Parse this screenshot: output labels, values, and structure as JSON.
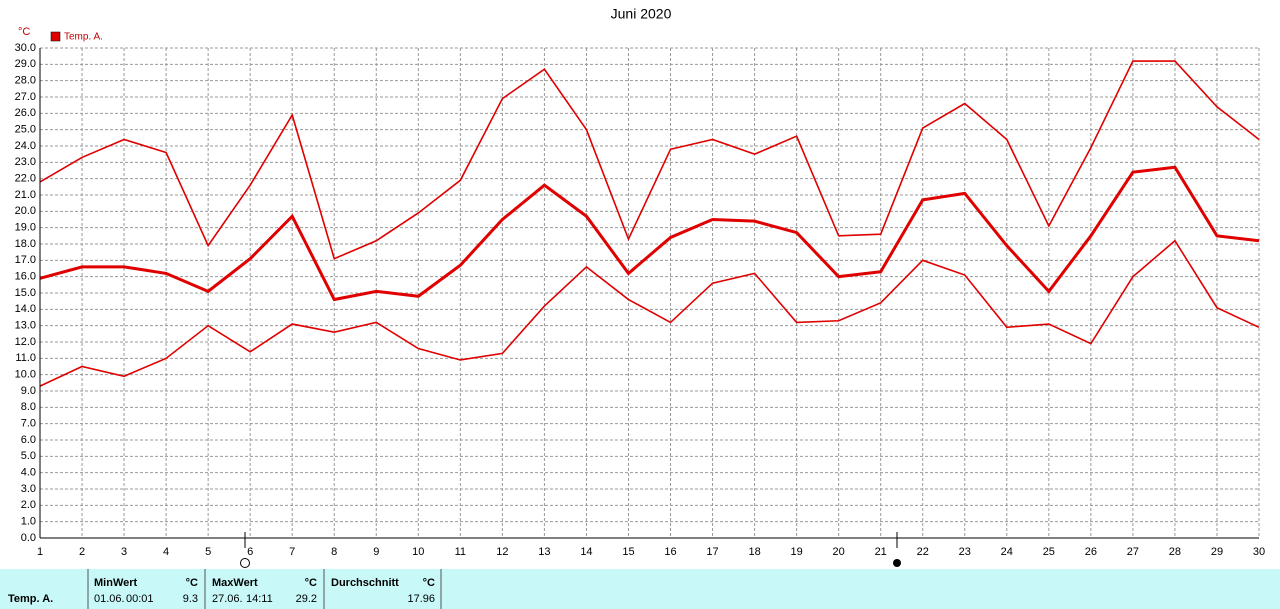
{
  "chart_data": {
    "type": "line",
    "title": "Juni 2020",
    "y_unit": "°C",
    "x": [
      1,
      2,
      3,
      4,
      5,
      6,
      7,
      8,
      9,
      10,
      11,
      12,
      13,
      14,
      15,
      16,
      17,
      18,
      19,
      20,
      21,
      22,
      23,
      24,
      25,
      26,
      27,
      28,
      29,
      30
    ],
    "xlim": [
      1,
      30
    ],
    "xticks": [
      1,
      2,
      3,
      4,
      5,
      6,
      7,
      8,
      9,
      10,
      11,
      12,
      13,
      14,
      15,
      16,
      17,
      18,
      19,
      20,
      21,
      22,
      23,
      24,
      25,
      26,
      27,
      28,
      29,
      30
    ],
    "ylim": [
      0,
      30
    ],
    "yticks": [
      {
        "value": 0,
        "label": "0.0"
      },
      {
        "value": 1,
        "label": "1.0"
      },
      {
        "value": 2,
        "label": "2.0"
      },
      {
        "value": 3,
        "label": "3.0"
      },
      {
        "value": 4,
        "label": "4.0"
      },
      {
        "value": 5,
        "label": "5.0"
      },
      {
        "value": 6,
        "label": "6.0"
      },
      {
        "value": 7,
        "label": "7.0"
      },
      {
        "value": 8,
        "label": "8.0"
      },
      {
        "value": 9,
        "label": "9.0"
      },
      {
        "value": 10,
        "label": "10.0"
      },
      {
        "value": 11,
        "label": "11.0"
      },
      {
        "value": 12,
        "label": "12.0"
      },
      {
        "value": 13,
        "label": "13.0"
      },
      {
        "value": 14,
        "label": "14.0"
      },
      {
        "value": 15,
        "label": "15.0"
      },
      {
        "value": 16,
        "label": "16.0"
      },
      {
        "value": 17,
        "label": "17.0"
      },
      {
        "value": 18,
        "label": "18.0"
      },
      {
        "value": 19,
        "label": "19.0"
      },
      {
        "value": 20,
        "label": "20.0"
      },
      {
        "value": 21,
        "label": "21.0"
      },
      {
        "value": 22,
        "label": "22.0"
      },
      {
        "value": 23,
        "label": "23.0"
      },
      {
        "value": 24,
        "label": "24.0"
      },
      {
        "value": 25,
        "label": "25.0"
      },
      {
        "value": 26,
        "label": "26.0"
      },
      {
        "value": 27,
        "label": "27.0"
      },
      {
        "value": 28,
        "label": "28.0"
      },
      {
        "value": 29,
        "label": "29.0"
      },
      {
        "value": 30,
        "label": "30.0"
      }
    ],
    "grid": true,
    "series": [
      {
        "color": "#e00000",
        "values": [
          21.8,
          23.3,
          24.4,
          23.6,
          17.9,
          21.6,
          25.9,
          17.1,
          18.2,
          19.9,
          21.9,
          26.9,
          28.7,
          25.0,
          18.3,
          23.8,
          24.4,
          23.5,
          24.6,
          18.5,
          18.6,
          25.1,
          26.6,
          24.4,
          19.1,
          23.9,
          29.2,
          29.2,
          26.4,
          24.4
        ]
      },
      {
        "name": "Temp. A.",
        "color": "#e00000",
        "values": [
          15.9,
          16.6,
          16.6,
          16.2,
          15.1,
          17.1,
          19.7,
          14.6,
          15.1,
          14.8,
          16.7,
          19.5,
          21.6,
          19.7,
          16.2,
          18.4,
          19.5,
          19.4,
          18.7,
          16.0,
          16.3,
          20.7,
          21.1,
          17.9,
          15.1,
          18.5,
          22.4,
          22.7,
          18.5,
          18.2
        ]
      },
      {
        "color": "#e00000",
        "values": [
          9.3,
          10.5,
          9.9,
          11.0,
          13.0,
          11.4,
          13.1,
          12.6,
          13.2,
          11.6,
          10.9,
          11.3,
          14.2,
          16.6,
          14.6,
          13.2,
          15.6,
          16.2,
          13.2,
          13.3,
          14.4,
          17.0,
          16.1,
          12.9,
          13.1,
          11.9,
          16.0,
          18.2,
          14.1,
          12.9
        ]
      }
    ]
  },
  "summary": {
    "row_label": "Temp. A.",
    "min": {
      "header": "MinWert",
      "unit": "°C",
      "date": "01.06.",
      "time": "00:01",
      "value": 9.3
    },
    "max": {
      "header": "MaxWert",
      "unit": "°C",
      "date": "27.06.",
      "time": "14:11",
      "value": 29.2
    },
    "mean": {
      "header": "Durchschnitt",
      "unit": "°C",
      "value": 17.96
    }
  }
}
